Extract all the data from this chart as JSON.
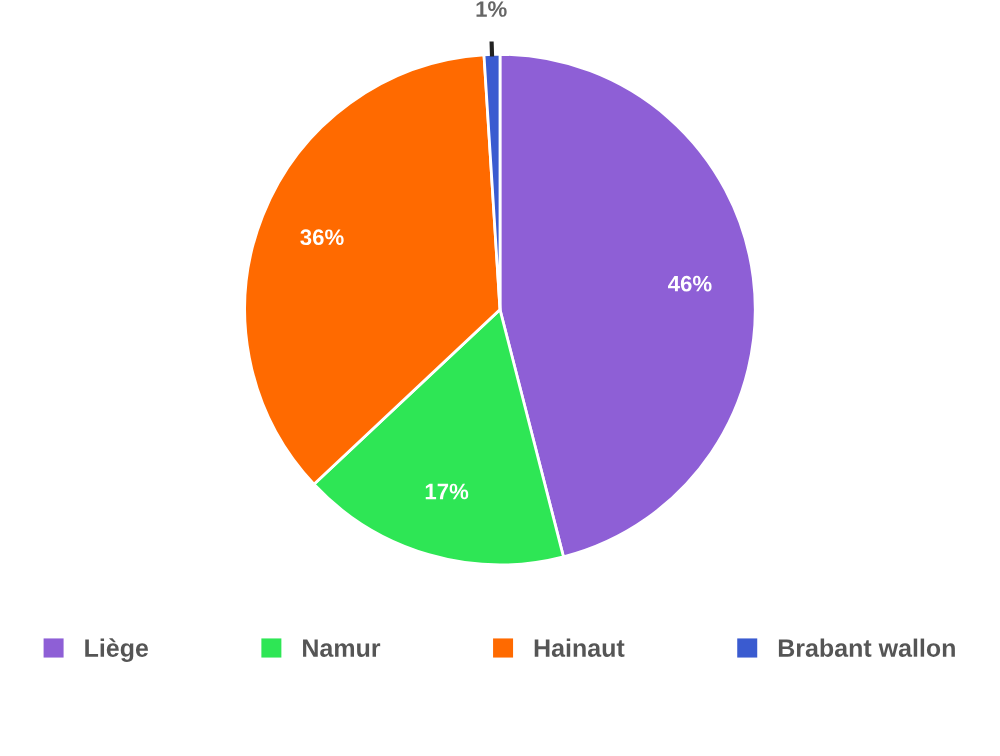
{
  "chart_data": {
    "type": "pie",
    "categories": [
      "Liège",
      "Namur",
      "Hainaut",
      "Brabant wallon"
    ],
    "values": [
      46,
      17,
      36,
      1
    ],
    "colors": [
      "#8e5fd6",
      "#2ee655",
      "#ff6a00",
      "#3a5bd0"
    ],
    "value_labels": [
      "46%",
      "17%",
      "36%",
      "1%"
    ],
    "legend": "bottom"
  }
}
